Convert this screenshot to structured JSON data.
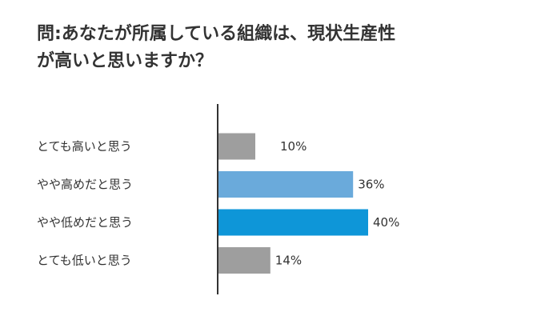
{
  "chart_data": {
    "type": "bar",
    "orientation": "horizontal",
    "title_line1": "問:あなたが所属している組織は、現状生産性",
    "title_line2": "が高いと思いますか？",
    "categories": [
      "とても高いと思う",
      "やや高めだと思う",
      "やや低めだと思う",
      "とても低いと思う"
    ],
    "values": [
      10,
      36,
      40,
      14
    ],
    "value_labels": [
      "10%",
      "36%",
      "40%",
      "14%"
    ],
    "bar_colors": [
      "#9e9e9e",
      "#6aaadb",
      "#0e96d8",
      "#9e9e9e"
    ],
    "xlim": [
      0,
      100
    ],
    "grid": false,
    "legend": "none"
  }
}
